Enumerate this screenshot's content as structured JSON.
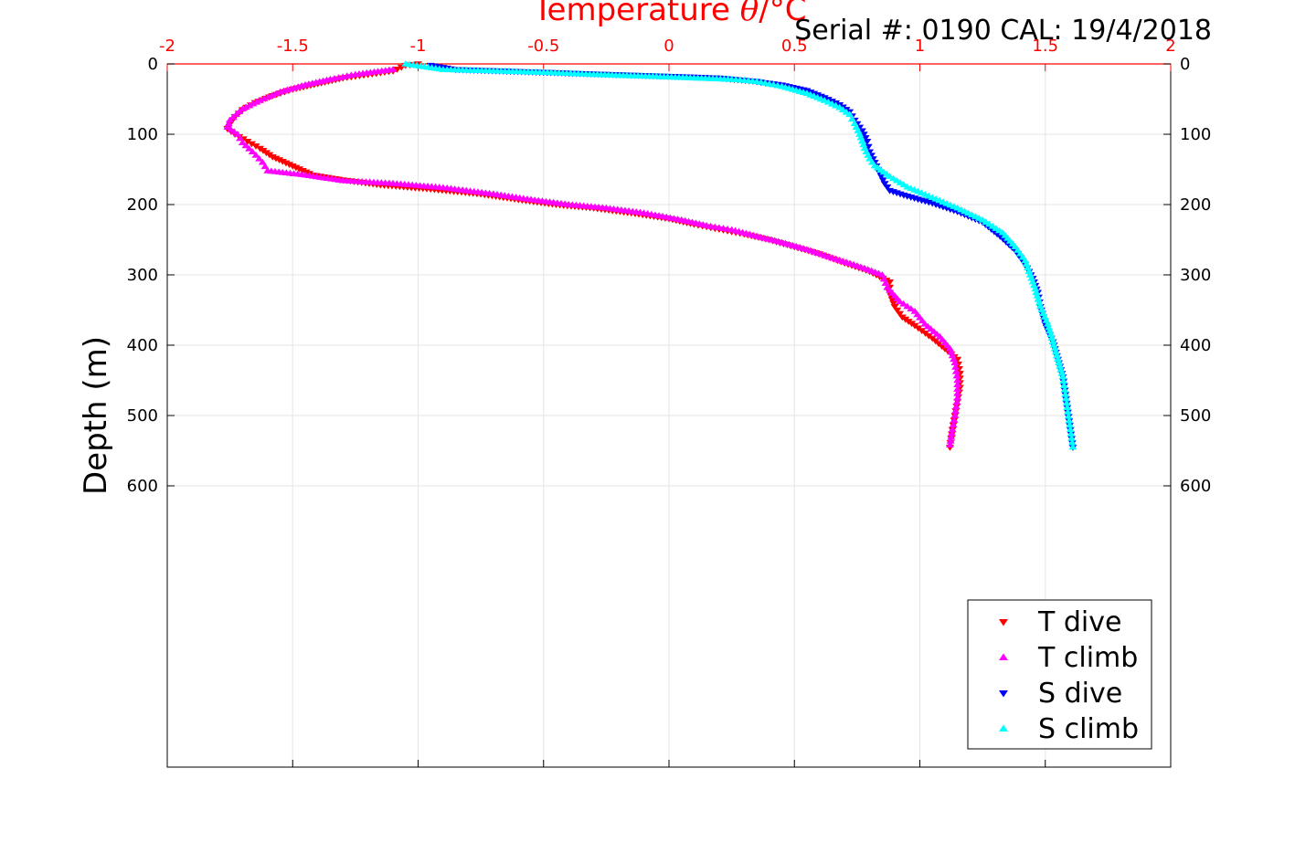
{
  "chart_data": {
    "type": "scatter",
    "x_axis_label_prefix": "Temperature ",
    "x_axis_label_theta": "θ",
    "x_axis_label_suffix": "/°C",
    "y_axis_label": "Depth (m)",
    "serial_text": "Serial #: 0190  CAL: 19/4/2018",
    "xlim": [
      -2,
      2
    ],
    "ylim": [
      0,
      1000
    ],
    "x_ticks": [
      -2,
      -1.5,
      -1,
      -0.5,
      0,
      0.5,
      1,
      1.5,
      2
    ],
    "x_tick_labels": [
      "-2",
      "-1.5",
      "-1",
      "-0.5",
      "0",
      "0.5",
      "1",
      "1.5",
      "2"
    ],
    "y_ticks": [
      0,
      100,
      200,
      300,
      400,
      500,
      600
    ],
    "y_tick_labels": [
      "0",
      "100",
      "200",
      "300",
      "400",
      "500",
      "600"
    ],
    "grid": true,
    "legend_position": "bottom-right",
    "series": [
      {
        "name": "T dive",
        "color": "#ff0000",
        "marker": "triangle-down",
        "points": [
          [
            -1.0,
            0
          ],
          [
            -1.05,
            2
          ],
          [
            -1.1,
            10
          ],
          [
            -1.2,
            15
          ],
          [
            -1.3,
            20
          ],
          [
            -1.4,
            28
          ],
          [
            -1.5,
            36
          ],
          [
            -1.58,
            45
          ],
          [
            -1.65,
            55
          ],
          [
            -1.7,
            65
          ],
          [
            -1.73,
            75
          ],
          [
            -1.75,
            85
          ],
          [
            -1.76,
            92
          ],
          [
            -1.73,
            100
          ],
          [
            -1.68,
            110
          ],
          [
            -1.63,
            120
          ],
          [
            -1.58,
            132
          ],
          [
            -1.5,
            145
          ],
          [
            -1.42,
            158
          ],
          [
            -1.3,
            165
          ],
          [
            -1.15,
            172
          ],
          [
            -0.95,
            178
          ],
          [
            -0.75,
            185
          ],
          [
            -0.6,
            193
          ],
          [
            -0.45,
            200
          ],
          [
            -0.3,
            205
          ],
          [
            -0.15,
            212
          ],
          [
            0.0,
            220
          ],
          [
            0.1,
            228
          ],
          [
            0.2,
            235
          ],
          [
            0.3,
            242
          ],
          [
            0.4,
            250
          ],
          [
            0.5,
            260
          ],
          [
            0.6,
            270
          ],
          [
            0.7,
            283
          ],
          [
            0.8,
            295
          ],
          [
            0.88,
            310
          ],
          [
            0.88,
            325
          ],
          [
            0.9,
            345
          ],
          [
            0.93,
            360
          ],
          [
            0.98,
            372
          ],
          [
            1.05,
            390
          ],
          [
            1.1,
            405
          ],
          [
            1.15,
            420
          ],
          [
            1.16,
            440
          ],
          [
            1.16,
            460
          ],
          [
            1.15,
            480
          ],
          [
            1.14,
            500
          ],
          [
            1.13,
            520
          ],
          [
            1.12,
            545
          ]
        ]
      },
      {
        "name": "T climb",
        "color": "#ff00ff",
        "marker": "triangle-up",
        "points": [
          [
            -1.1,
            8
          ],
          [
            -1.25,
            15
          ],
          [
            -1.35,
            22
          ],
          [
            -1.45,
            30
          ],
          [
            -1.55,
            40
          ],
          [
            -1.63,
            52
          ],
          [
            -1.7,
            64
          ],
          [
            -1.75,
            80
          ],
          [
            -1.76,
            90
          ],
          [
            -1.72,
            100
          ],
          [
            -1.7,
            112
          ],
          [
            -1.66,
            125
          ],
          [
            -1.62,
            140
          ],
          [
            -1.6,
            152
          ],
          [
            -1.45,
            158
          ],
          [
            -1.3,
            166
          ],
          [
            -1.1,
            170
          ],
          [
            -0.9,
            176
          ],
          [
            -0.7,
            185
          ],
          [
            -0.55,
            193
          ],
          [
            -0.4,
            200
          ],
          [
            -0.25,
            205
          ],
          [
            -0.1,
            212
          ],
          [
            0.05,
            222
          ],
          [
            0.15,
            230
          ],
          [
            0.25,
            236
          ],
          [
            0.35,
            245
          ],
          [
            0.45,
            254
          ],
          [
            0.55,
            264
          ],
          [
            0.65,
            276
          ],
          [
            0.75,
            287
          ],
          [
            0.85,
            300
          ],
          [
            0.87,
            318
          ],
          [
            0.92,
            338
          ],
          [
            0.98,
            352
          ],
          [
            1.02,
            370
          ],
          [
            1.08,
            388
          ],
          [
            1.12,
            405
          ],
          [
            1.14,
            425
          ],
          [
            1.15,
            450
          ],
          [
            1.15,
            475
          ],
          [
            1.14,
            500
          ],
          [
            1.13,
            520
          ],
          [
            1.12,
            542
          ]
        ]
      },
      {
        "name": "S dive",
        "color": "#0000ff",
        "marker": "triangle-down",
        "points": [
          [
            -0.95,
            2
          ],
          [
            -0.85,
            8
          ],
          [
            -0.5,
            12
          ],
          [
            -0.15,
            16
          ],
          [
            0.2,
            20
          ],
          [
            0.35,
            25
          ],
          [
            0.45,
            30
          ],
          [
            0.55,
            38
          ],
          [
            0.62,
            48
          ],
          [
            0.68,
            58
          ],
          [
            0.72,
            68
          ],
          [
            0.74,
            80
          ],
          [
            0.77,
            95
          ],
          [
            0.79,
            110
          ],
          [
            0.8,
            125
          ],
          [
            0.82,
            140
          ],
          [
            0.84,
            155
          ],
          [
            0.86,
            170
          ],
          [
            0.88,
            180
          ],
          [
            0.95,
            188
          ],
          [
            1.05,
            198
          ],
          [
            1.15,
            210
          ],
          [
            1.25,
            225
          ],
          [
            1.32,
            245
          ],
          [
            1.38,
            265
          ],
          [
            1.42,
            285
          ],
          [
            1.45,
            305
          ],
          [
            1.47,
            325
          ],
          [
            1.48,
            345
          ],
          [
            1.5,
            370
          ],
          [
            1.53,
            395
          ],
          [
            1.55,
            420
          ],
          [
            1.57,
            445
          ],
          [
            1.58,
            470
          ],
          [
            1.59,
            495
          ],
          [
            1.6,
            520
          ],
          [
            1.61,
            545
          ]
        ]
      },
      {
        "name": "S climb",
        "color": "#00ffff",
        "marker": "triangle-up",
        "points": [
          [
            -1.05,
            0
          ],
          [
            -0.9,
            8
          ],
          [
            -0.7,
            10
          ],
          [
            -0.5,
            12
          ],
          [
            -0.3,
            15
          ],
          [
            -0.05,
            18
          ],
          [
            0.1,
            20
          ],
          [
            0.25,
            22
          ],
          [
            0.35,
            25
          ],
          [
            0.45,
            32
          ],
          [
            0.55,
            42
          ],
          [
            0.62,
            52
          ],
          [
            0.68,
            62
          ],
          [
            0.72,
            72
          ],
          [
            0.74,
            85
          ],
          [
            0.76,
            100
          ],
          [
            0.78,
            120
          ],
          [
            0.8,
            135
          ],
          [
            0.82,
            145
          ],
          [
            0.88,
            160
          ],
          [
            0.95,
            175
          ],
          [
            1.05,
            190
          ],
          [
            1.15,
            205
          ],
          [
            1.25,
            222
          ],
          [
            1.33,
            240
          ],
          [
            1.38,
            260
          ],
          [
            1.42,
            280
          ],
          [
            1.44,
            300
          ],
          [
            1.46,
            320
          ],
          [
            1.48,
            345
          ],
          [
            1.51,
            370
          ],
          [
            1.53,
            395
          ],
          [
            1.55,
            420
          ],
          [
            1.57,
            445
          ],
          [
            1.58,
            470
          ],
          [
            1.59,
            495
          ],
          [
            1.6,
            520
          ],
          [
            1.61,
            545
          ]
        ]
      }
    ]
  }
}
